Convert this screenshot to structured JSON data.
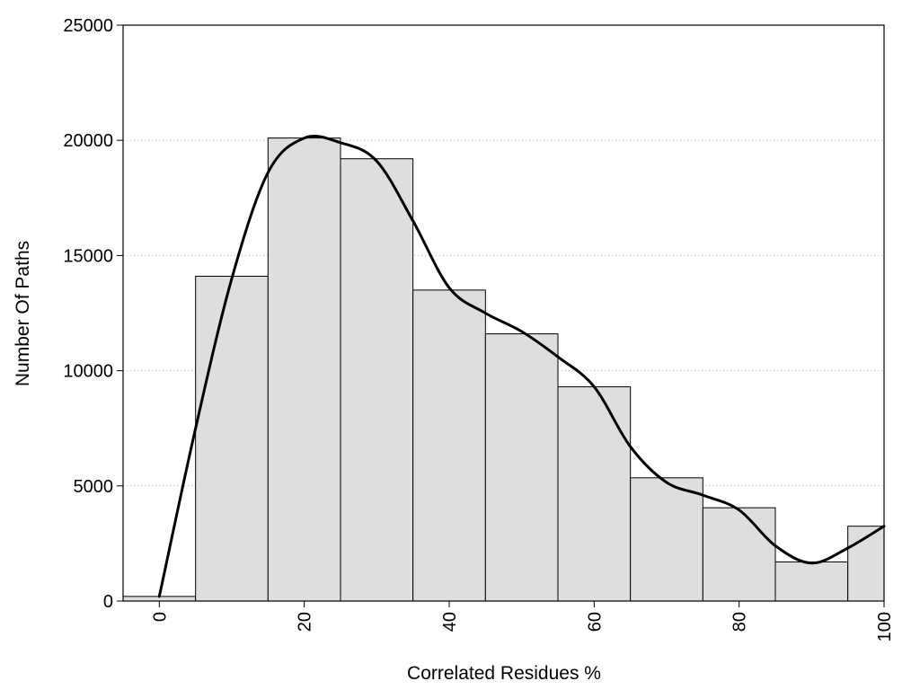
{
  "chart_data": {
    "type": "bar",
    "xlabel": "Correlated Residues %",
    "ylabel": "Number Of Paths",
    "xlim": [
      -5,
      100
    ],
    "ylim": [
      0,
      25000
    ],
    "x_ticks": [
      "0",
      "20",
      "40",
      "60",
      "80",
      "100"
    ],
    "y_ticks": [
      "0",
      "5000",
      "10000",
      "15000",
      "20000",
      "25000"
    ],
    "grid": "horizontal-dotted",
    "bar_color": "#dedede",
    "curve_color": "#000000",
    "bins": [
      {
        "center": 0,
        "value": 200
      },
      {
        "center": 10,
        "value": 14100
      },
      {
        "center": 20,
        "value": 20100
      },
      {
        "center": 30,
        "value": 19200
      },
      {
        "center": 40,
        "value": 13500
      },
      {
        "center": 50,
        "value": 11600
      },
      {
        "center": 60,
        "value": 9300
      },
      {
        "center": 70,
        "value": 5350
      },
      {
        "center": 80,
        "value": 4050
      },
      {
        "center": 90,
        "value": 1700
      },
      {
        "center": 100,
        "value": 3250
      }
    ],
    "bin_width": 10,
    "density_curve": [
      {
        "x": 0,
        "y": 200
      },
      {
        "x": 5,
        "y": 7500
      },
      {
        "x": 10,
        "y": 14000
      },
      {
        "x": 15,
        "y": 18600
      },
      {
        "x": 20,
        "y": 20100
      },
      {
        "x": 25,
        "y": 19900
      },
      {
        "x": 30,
        "y": 19100
      },
      {
        "x": 35,
        "y": 16500
      },
      {
        "x": 40,
        "y": 13600
      },
      {
        "x": 45,
        "y": 12500
      },
      {
        "x": 50,
        "y": 11700
      },
      {
        "x": 55,
        "y": 10600
      },
      {
        "x": 60,
        "y": 9300
      },
      {
        "x": 65,
        "y": 6700
      },
      {
        "x": 70,
        "y": 5150
      },
      {
        "x": 75,
        "y": 4600
      },
      {
        "x": 80,
        "y": 3950
      },
      {
        "x": 85,
        "y": 2400
      },
      {
        "x": 90,
        "y": 1650
      },
      {
        "x": 95,
        "y": 2300
      },
      {
        "x": 100,
        "y": 3250
      }
    ]
  }
}
